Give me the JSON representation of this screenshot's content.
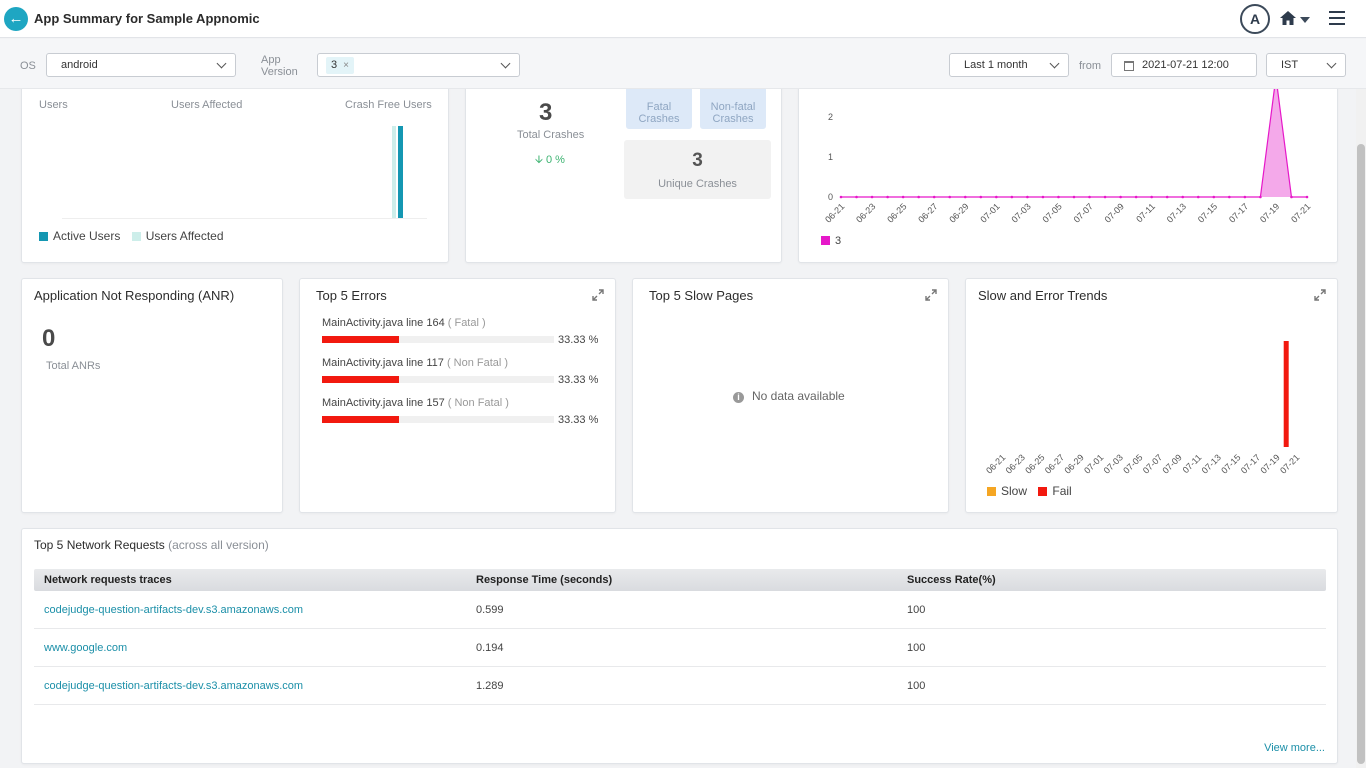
{
  "header": {
    "title": "App Summary for Sample Appnomic",
    "avatar_letter": "A"
  },
  "filters": {
    "os_label": "OS",
    "os_value": "android",
    "version_label_line1": "App",
    "version_label_line2": "Version",
    "version_tag": "3",
    "version_tag_remove": "×",
    "range_value": "Last 1 month",
    "from_label": "from",
    "from_value": "2021-07-21 12:00",
    "timezone_value": "IST"
  },
  "users_card": {
    "users_label": "Users",
    "users_affected_label": "Users Affected",
    "crash_free_label": "Crash Free Users",
    "legend_active": "Active Users",
    "legend_affected": "Users Affected",
    "colors": {
      "active": "#1497b2",
      "affected": "#cdeeea"
    }
  },
  "crashes_card": {
    "total_crashes": "3",
    "total_crashes_label": "Total Crashes",
    "change": "0 %",
    "fatal_label_line1": "Fatal",
    "fatal_label_line2": "Crashes",
    "nonfatal_label_line1": "Non-fatal",
    "nonfatal_label_line2": "Crashes",
    "unique_crashes": "3",
    "unique_crashes_label": "Unique Crashes"
  },
  "crash_trend_chart": {
    "legend_series": "3",
    "color": "#e618c9"
  },
  "anr_card": {
    "title": "Application Not Responding (ANR)",
    "total": "0",
    "total_label": "Total ANRs"
  },
  "errors_card": {
    "title": "Top 5 Errors",
    "items": [
      {
        "name": "MainActivity.java line 164",
        "type": "( Fatal )",
        "percent_text": "33.33 %",
        "fraction": 0.3333
      },
      {
        "name": "MainActivity.java line 117",
        "type": "( Non Fatal )",
        "percent_text": "33.33 %",
        "fraction": 0.3333
      },
      {
        "name": "MainActivity.java line 157",
        "type": "( Non Fatal )",
        "percent_text": "33.33 %",
        "fraction": 0.3333
      }
    ],
    "bar_color": "#f2190f"
  },
  "slow_pages_card": {
    "title": "Top 5 Slow Pages",
    "empty_text": "No data available"
  },
  "trends_card": {
    "title": "Slow and Error Trends",
    "legend_slow": "Slow",
    "legend_fail": "Fail",
    "colors": {
      "slow": "#f5a623",
      "fail": "#f2190f"
    }
  },
  "network_card": {
    "title": "Top 5 Network Requests",
    "subtitle": "(across all version)",
    "columns": [
      "Network requests traces",
      "Response Time (seconds)",
      "Success Rate(%)"
    ],
    "rows": [
      {
        "trace": "codejudge-question-artifacts-dev.s3.amazonaws.com",
        "response": "0.599",
        "success": "100"
      },
      {
        "trace": "www.google.com",
        "response": "0.194",
        "success": "100"
      },
      {
        "trace": "codejudge-question-artifacts-dev.s3.amazonaws.com",
        "response": "1.289",
        "success": "100"
      }
    ],
    "view_more": "View more..."
  },
  "chart_data": [
    {
      "type": "area",
      "x": [
        "06-21",
        "06-22",
        "06-23",
        "06-24",
        "06-25",
        "06-26",
        "06-27",
        "06-28",
        "06-29",
        "06-30",
        "07-01",
        "07-02",
        "07-03",
        "07-04",
        "07-05",
        "07-06",
        "07-07",
        "07-08",
        "07-09",
        "07-10",
        "07-11",
        "07-12",
        "07-13",
        "07-14",
        "07-15",
        "07-16",
        "07-17",
        "07-18",
        "07-19",
        "07-20",
        "07-21"
      ],
      "tick_labels": [
        "06-21",
        "06-23",
        "06-25",
        "06-27",
        "06-29",
        "07-01",
        "07-03",
        "07-05",
        "07-07",
        "07-09",
        "07-11",
        "07-13",
        "07-15",
        "07-17",
        "07-19",
        "07-21"
      ],
      "y_ticks": [
        "0",
        "1",
        "2"
      ],
      "series": [
        {
          "name": "3",
          "values": [
            0,
            0,
            0,
            0,
            0,
            0,
            0,
            0,
            0,
            0,
            0,
            0,
            0,
            0,
            0,
            0,
            0,
            0,
            0,
            0,
            0,
            0,
            0,
            0,
            0,
            0,
            0,
            0,
            3,
            0,
            0
          ]
        }
      ],
      "ylim": [
        0,
        3
      ]
    },
    {
      "type": "bar",
      "x": [
        "06-21",
        "06-22",
        "06-23",
        "06-24",
        "06-25",
        "06-26",
        "06-27",
        "06-28",
        "06-29",
        "06-30",
        "07-01",
        "07-02",
        "07-03",
        "07-04",
        "07-05",
        "07-06",
        "07-07",
        "07-08",
        "07-09",
        "07-10",
        "07-11",
        "07-12",
        "07-13",
        "07-14",
        "07-15",
        "07-16",
        "07-17",
        "07-18",
        "07-19",
        "07-20",
        "07-21"
      ],
      "tick_labels": [
        "06-21",
        "06-23",
        "06-25",
        "06-27",
        "06-29",
        "07-01",
        "07-03",
        "07-05",
        "07-07",
        "07-09",
        "07-11",
        "07-13",
        "07-15",
        "07-17",
        "07-19",
        "07-21"
      ],
      "series": [
        {
          "name": "Slow",
          "values": [
            0,
            0,
            0,
            0,
            0,
            0,
            0,
            0,
            0,
            0,
            0,
            0,
            0,
            0,
            0,
            0,
            0,
            0,
            0,
            0,
            0,
            0,
            0,
            0,
            0,
            0,
            0,
            0,
            0,
            0,
            0
          ]
        },
        {
          "name": "Fail",
          "values": [
            0,
            0,
            0,
            0,
            0,
            0,
            0,
            0,
            0,
            0,
            0,
            0,
            0,
            0,
            0,
            0,
            0,
            0,
            0,
            0,
            0,
            0,
            0,
            0,
            0,
            0,
            0,
            0,
            0,
            3,
            0
          ]
        }
      ],
      "ylim": [
        0,
        3
      ]
    }
  ]
}
